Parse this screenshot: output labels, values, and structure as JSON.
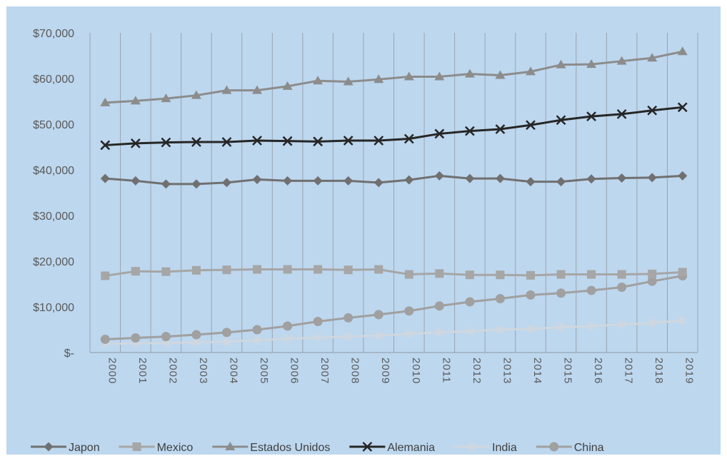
{
  "chart_data": {
    "type": "line",
    "title": "",
    "xlabel": "",
    "ylabel": "",
    "ylim": [
      0,
      70000
    ],
    "y_ticks": [
      "$-",
      "$10,000",
      "$20,000",
      "$30,000",
      "$40,000",
      "$50,000",
      "$60,000",
      "$70,000"
    ],
    "grid": "vertical",
    "legend_position": "bottom",
    "categories": [
      "2000",
      "2001",
      "2002",
      "2003",
      "2004",
      "2005",
      "2006",
      "2007",
      "2008",
      "2009",
      "2010",
      "2011",
      "2012",
      "2013",
      "2014",
      "2015",
      "2016",
      "2017",
      "2018",
      "2019"
    ],
    "series": [
      {
        "name": "Japon",
        "color": "#707070",
        "marker": "diamond",
        "values": [
          38100,
          37600,
          36900,
          36900,
          37200,
          37900,
          37600,
          37600,
          37600,
          37200,
          37800,
          38700,
          38100,
          38100,
          37400,
          37400,
          38000,
          38200,
          38300,
          38700
        ]
      },
      {
        "name": "Mexico",
        "color": "#a6a6a6",
        "marker": "square",
        "values": [
          16800,
          17800,
          17700,
          18000,
          18100,
          18200,
          18200,
          18200,
          18100,
          18200,
          17100,
          17300,
          17000,
          17000,
          16900,
          17100,
          17100,
          17100,
          17200,
          17600
        ]
      },
      {
        "name": "Estados Unidos",
        "color": "#8c8c8c",
        "marker": "triangle",
        "values": [
          54700,
          55100,
          55600,
          56300,
          57400,
          57400,
          58300,
          59500,
          59300,
          59800,
          60400,
          60400,
          61000,
          60700,
          61500,
          63000,
          63100,
          63800,
          64500,
          65900
        ]
      },
      {
        "name": "Alemania",
        "color": "#262626",
        "marker": "x",
        "values": [
          45400,
          45800,
          46000,
          46100,
          46100,
          46400,
          46300,
          46200,
          46400,
          46400,
          46800,
          47900,
          48500,
          48900,
          49800,
          50900,
          51700,
          52200,
          53000,
          53700
        ]
      },
      {
        "name": "India",
        "color": "#d0d7df",
        "marker": "star",
        "values": [
          1900,
          2000,
          2100,
          2200,
          2400,
          2700,
          3000,
          3300,
          3500,
          3700,
          4100,
          4400,
          4700,
          5000,
          5200,
          5500,
          5800,
          6100,
          6500,
          7000
        ]
      },
      {
        "name": "China",
        "color": "#a0a0a0",
        "marker": "circle",
        "values": [
          2900,
          3200,
          3500,
          3900,
          4400,
          5000,
          5800,
          6800,
          7600,
          8300,
          9100,
          10200,
          11100,
          11800,
          12600,
          13000,
          13600,
          14300,
          15600,
          16800
        ]
      }
    ]
  }
}
